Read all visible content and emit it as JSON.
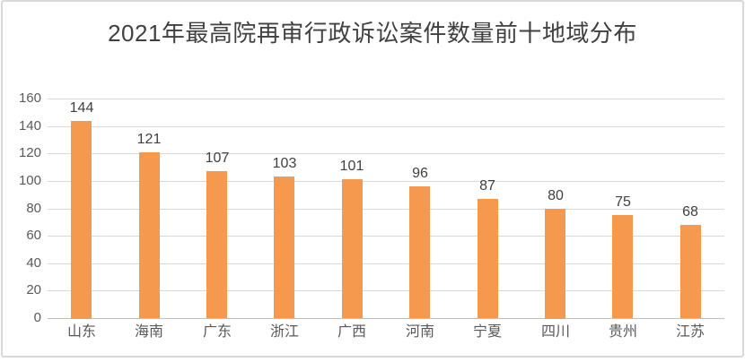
{
  "chart_data": {
    "type": "bar",
    "title": "2021年最高院再审行政诉讼案件数量前十地域分布",
    "categories": [
      "山东",
      "海南",
      "广东",
      "浙江",
      "广西",
      "河南",
      "宁夏",
      "四川",
      "贵州",
      "江苏"
    ],
    "values": [
      144,
      121,
      107,
      103,
      101,
      96,
      87,
      80,
      75,
      68
    ],
    "xlabel": "",
    "ylabel": "",
    "ylim": [
      0,
      160
    ],
    "yticks": [
      0,
      20,
      40,
      60,
      80,
      100,
      120,
      140,
      160
    ],
    "grid": true,
    "legend_position": "none",
    "value_labels_shown": true,
    "colors": {
      "bar": "#f4994d",
      "gridline": "#d9d9d9",
      "axis_line": "#bfbfbf",
      "title_text": "#404040",
      "value_label_text": "#404040",
      "tick_label_text": "#595959",
      "frame_border": "#d9d9d9",
      "background": "#ffffff"
    }
  }
}
